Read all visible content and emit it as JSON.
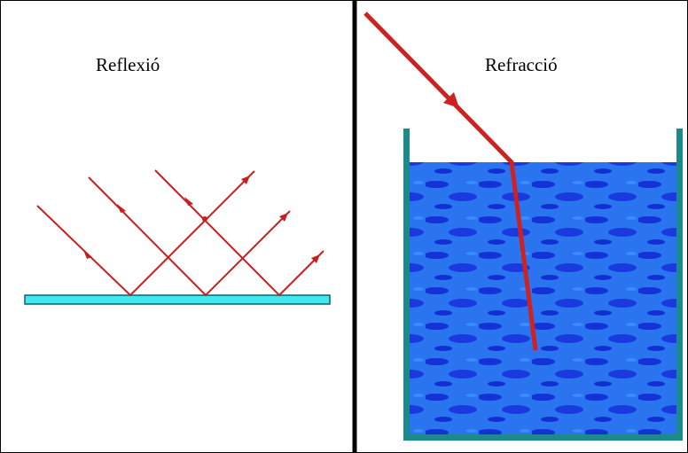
{
  "panels": [
    {
      "label": "Reflexió"
    },
    {
      "label": "Refracció"
    }
  ]
}
